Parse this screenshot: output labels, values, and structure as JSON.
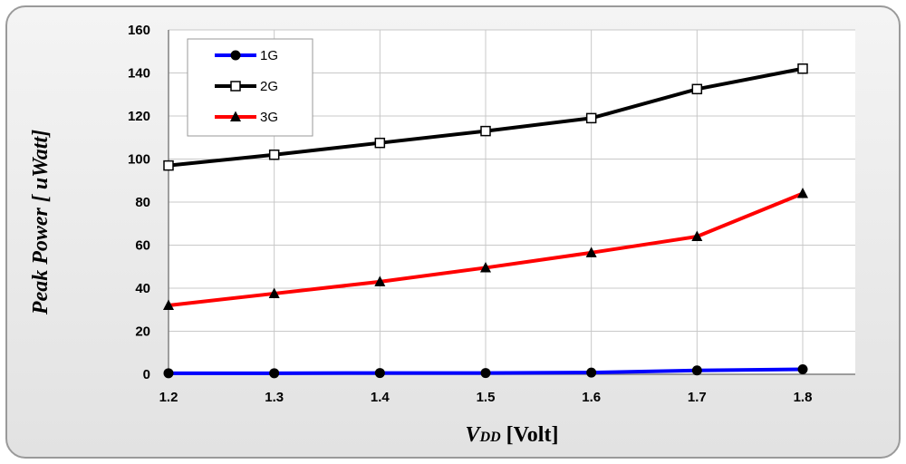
{
  "chart_data": {
    "type": "line",
    "title": "",
    "xlabel_main": "V",
    "xlabel_sub": "DD",
    "xlabel_rest": " [Volt]",
    "ylabel": "Peak Power [ uWatt]",
    "x": [
      1.2,
      1.3,
      1.4,
      1.5,
      1.6,
      1.7,
      1.8
    ],
    "xtick_labels": [
      "1.2",
      "1.3",
      "1.4",
      "1.5",
      "1.6",
      "1.7",
      "1.8"
    ],
    "ytick_labels": [
      "0",
      "20",
      "40",
      "60",
      "80",
      "100",
      "120",
      "140",
      "160"
    ],
    "xlim": [
      1.2,
      1.8
    ],
    "ylim": [
      0,
      160
    ],
    "grid": true,
    "legend_position": "top-left",
    "series": [
      {
        "name": "1G",
        "color": "#0000ff",
        "marker": "circle",
        "values": [
          0.5,
          0.5,
          0.6,
          0.6,
          0.8,
          1.8,
          2.3
        ]
      },
      {
        "name": "2G",
        "color": "#000000",
        "marker": "square-open",
        "values": [
          97,
          102,
          107.5,
          113,
          119,
          132.5,
          142
        ]
      },
      {
        "name": "3G",
        "color": "#ff0000",
        "marker": "triangle",
        "values": [
          32,
          37.5,
          43,
          49.5,
          56.5,
          64,
          84
        ]
      }
    ]
  }
}
